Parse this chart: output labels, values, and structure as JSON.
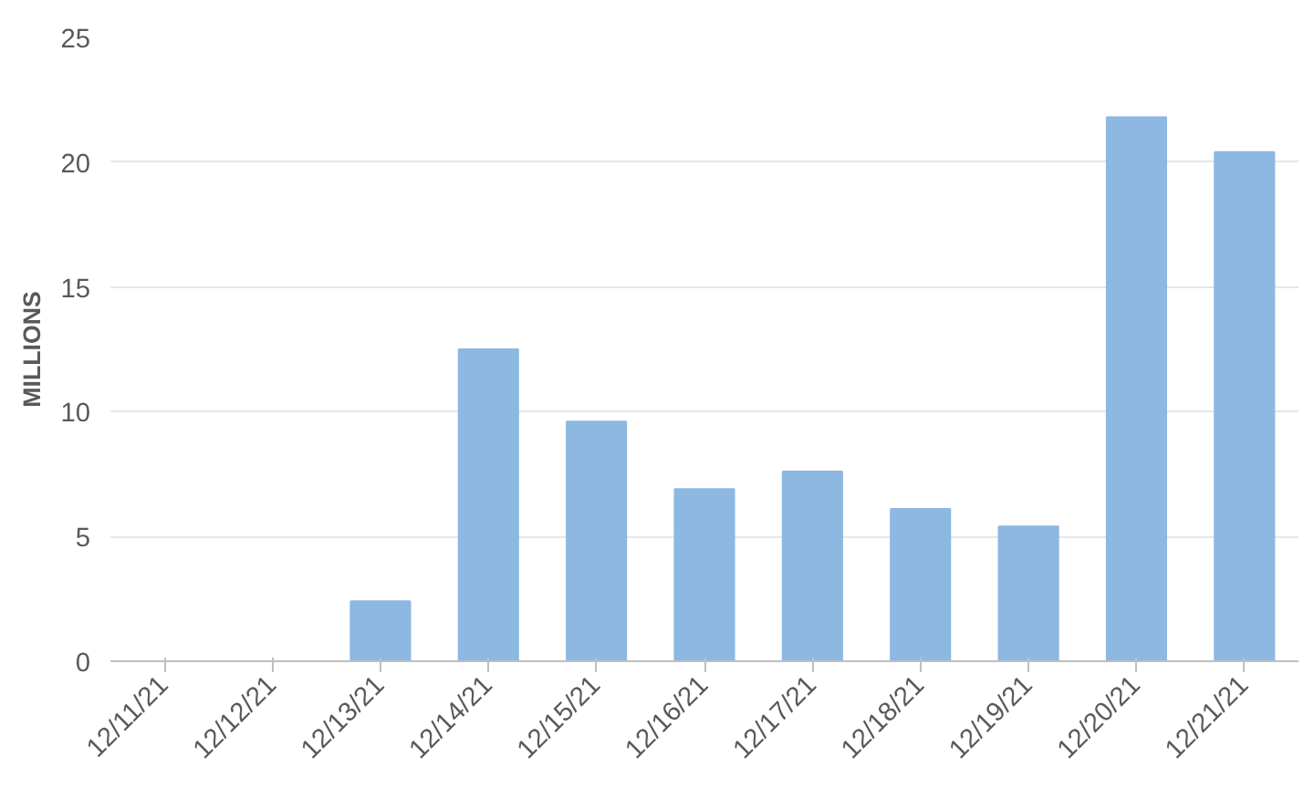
{
  "chart_data": {
    "type": "bar",
    "ylabel": "MILLIONS",
    "categories": [
      "12/11/21",
      "12/12/21",
      "12/13/21",
      "12/14/21",
      "12/15/21",
      "12/16/21",
      "12/17/21",
      "12/18/21",
      "12/19/21",
      "12/20/21",
      "12/21/21"
    ],
    "values": [
      0,
      0,
      2.4,
      12.5,
      9.6,
      6.9,
      7.6,
      6.1,
      5.4,
      21.8,
      20.4
    ],
    "color": "#8cb8e2",
    "ylim": [
      0,
      25
    ],
    "yticks": [
      0,
      5,
      10,
      15,
      20,
      25
    ],
    "grid": "y"
  }
}
